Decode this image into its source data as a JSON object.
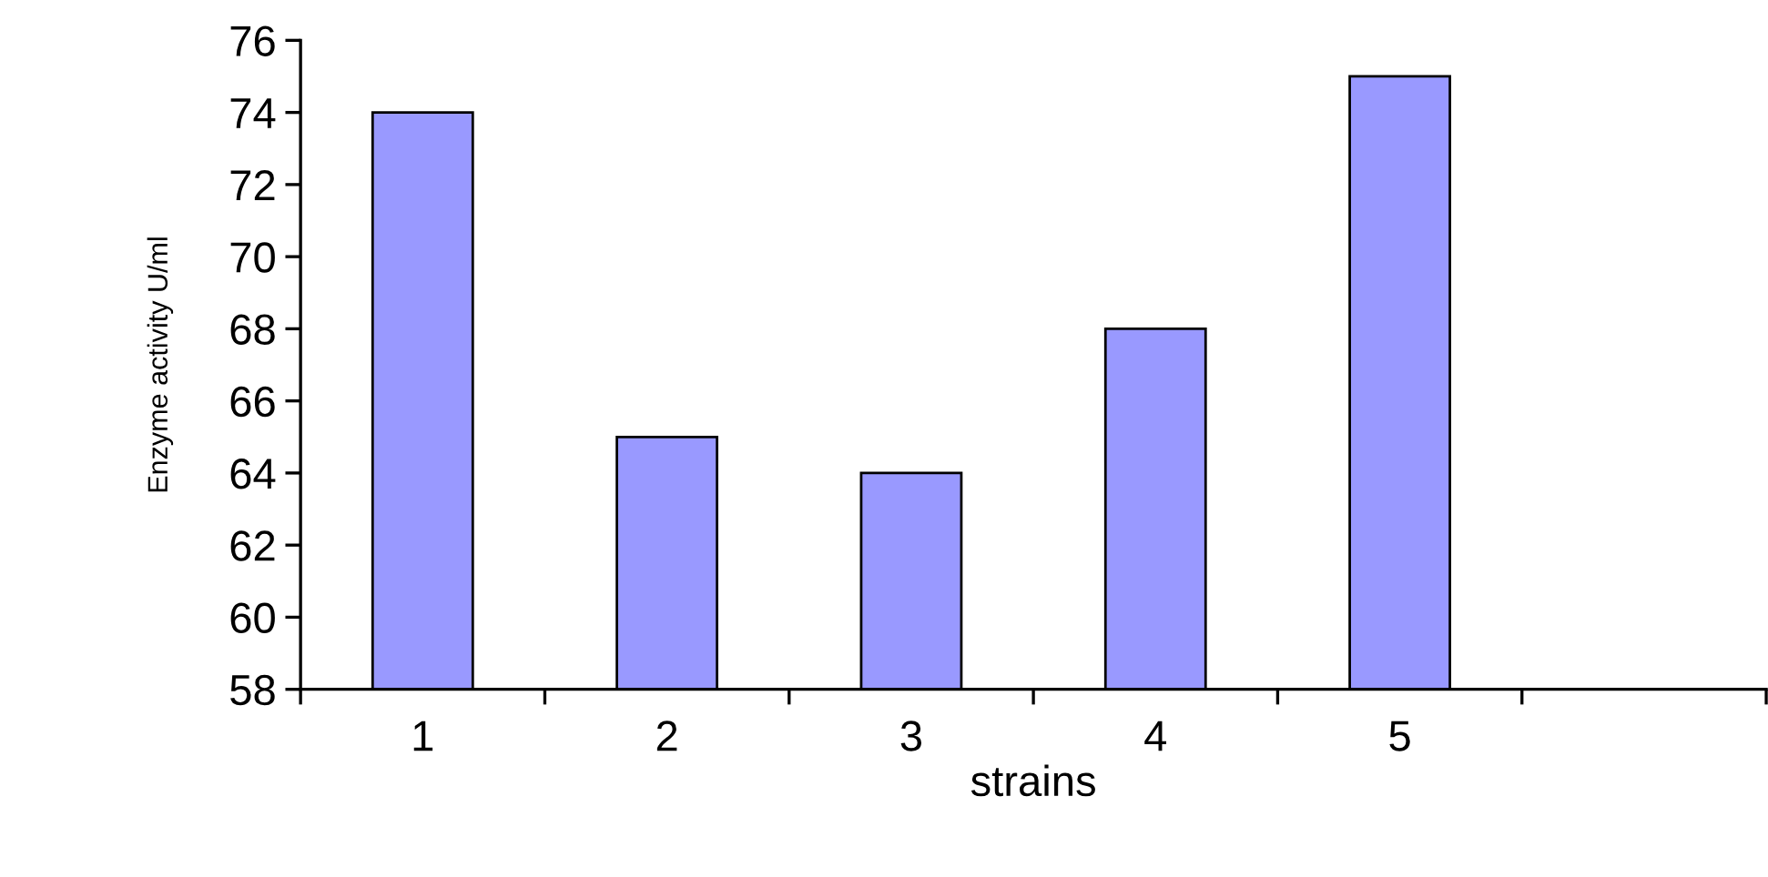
{
  "chart_data": {
    "type": "bar",
    "xlabel": "strains",
    "ylabel": "Enzyme activity U/ml",
    "categories": [
      "1",
      "2",
      "3",
      "4",
      "5",
      null
    ],
    "values": [
      74,
      65,
      64,
      68,
      75,
      null
    ],
    "color": "#9999ff",
    "ylim": [
      58,
      76
    ],
    "yticks": [
      58,
      60,
      62,
      64,
      66,
      68,
      70,
      72,
      74,
      76
    ],
    "grid": false,
    "legend": false
  }
}
